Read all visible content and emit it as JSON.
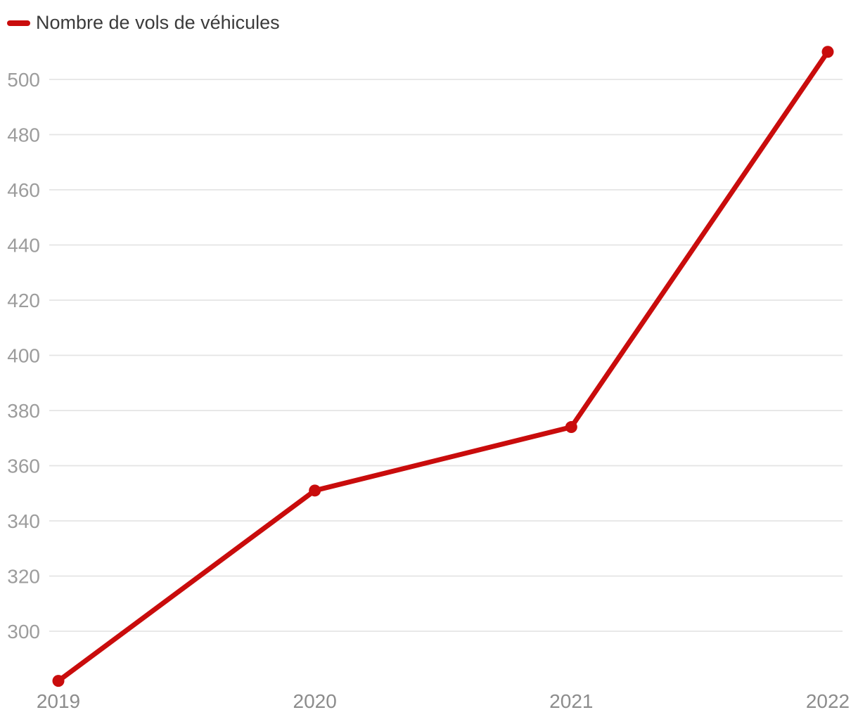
{
  "legend": {
    "label": "Nombre de vols de véhicules",
    "marker_color": "#c90c0c"
  },
  "chart_data": {
    "type": "line",
    "title": "",
    "categories": [
      "2019",
      "2020",
      "2021",
      "2022"
    ],
    "series": [
      {
        "name": "Nombre de vols de véhicules",
        "color": "#c90c0c",
        "values": [
          282,
          351,
          374,
          510
        ]
      }
    ],
    "xlabel": "",
    "ylabel": "",
    "y_ticks": [
      300,
      320,
      340,
      360,
      380,
      400,
      420,
      440,
      460,
      480,
      500
    ],
    "ylim": [
      280,
      512
    ],
    "grid": "horizontal",
    "legend_position": "top-left",
    "styles": {
      "grid_color": "#e4e4e4",
      "y_tick_label_color": "#9c9c9c",
      "x_tick_label_color": "#8c8c8c",
      "legend_text_color": "#3b3b3b",
      "line_width": 7,
      "point_radius": 8.5,
      "background": "#ffffff"
    }
  }
}
